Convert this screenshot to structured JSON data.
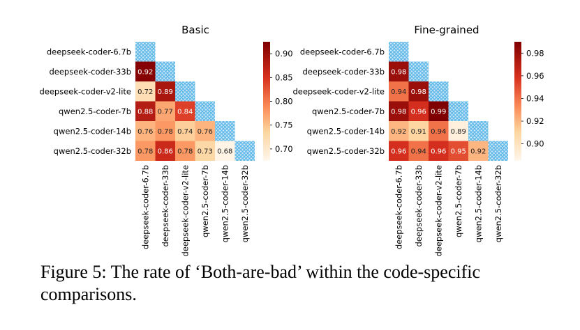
{
  "chart_data": [
    {
      "type": "heatmap",
      "title": "Basic",
      "labels": [
        "deepseek-coder-6.7b",
        "deepseek-coder-33b",
        "deepseek-coder-v2-lite",
        "qwen2.5-coder-7b",
        "qwen2.5-coder-14b",
        "qwen2.5-coder-32b"
      ],
      "values": [
        [
          null,
          null,
          null,
          null,
          null,
          null
        ],
        [
          0.92,
          null,
          null,
          null,
          null,
          null
        ],
        [
          0.72,
          0.89,
          null,
          null,
          null,
          null
        ],
        [
          0.88,
          0.77,
          0.84,
          null,
          null,
          null
        ],
        [
          0.76,
          0.78,
          0.74,
          0.76,
          null,
          null
        ],
        [
          0.78,
          0.86,
          0.78,
          0.73,
          0.68,
          null
        ]
      ],
      "diagonal": "hatched",
      "colorbar": {
        "min": 0.675,
        "max": 0.925,
        "ticks": [
          0.7,
          0.75,
          0.8,
          0.85,
          0.9
        ]
      }
    },
    {
      "type": "heatmap",
      "title": "Fine-grained",
      "labels": [
        "deepseek-coder-6.7b",
        "deepseek-coder-33b",
        "deepseek-coder-v2-lite",
        "qwen2.5-coder-7b",
        "qwen2.5-coder-14b",
        "qwen2.5-coder-32b"
      ],
      "values": [
        [
          null,
          null,
          null,
          null,
          null,
          null
        ],
        [
          0.98,
          null,
          null,
          null,
          null,
          null
        ],
        [
          0.94,
          0.98,
          null,
          null,
          null,
          null
        ],
        [
          0.98,
          0.96,
          0.99,
          null,
          null,
          null
        ],
        [
          0.92,
          0.91,
          0.94,
          0.89,
          null,
          null
        ],
        [
          0.96,
          0.94,
          0.96,
          0.95,
          0.92,
          null
        ]
      ],
      "diagonal": "hatched",
      "colorbar": {
        "min": 0.885,
        "max": 0.99,
        "ticks": [
          0.9,
          0.92,
          0.94,
          0.96,
          0.98
        ]
      }
    }
  ],
  "caption": "Figure 5: The rate of ‘Both-are-bad’ within the code-specific comparisons.",
  "colors": {
    "hatch": "#87cdf0",
    "low": "#fff7ec",
    "high": "#7f0000"
  }
}
